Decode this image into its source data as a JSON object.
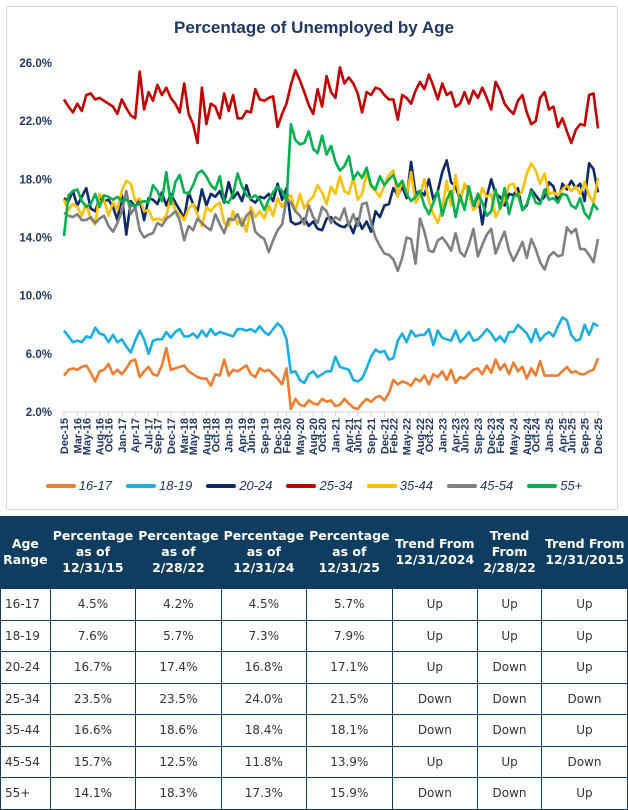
{
  "chart_data": {
    "type": "line",
    "title": "Percentage of Unemployed by Age",
    "xlabel": "",
    "ylabel": "",
    "ylim": [
      2,
      26
    ],
    "y_ticks": [
      "2.0%",
      "6.0%",
      "10.0%",
      "14.0%",
      "18.0%",
      "22.0%",
      "26.0%"
    ],
    "grid": false,
    "legend": "bottom",
    "x_start": "Dec-15",
    "x_end": "Dec-25",
    "x_frequency": "monthly",
    "x_tick_labels": [
      "Dec-15",
      "Mar-16",
      "May-16",
      "Aug-16",
      "Oct-16",
      "Jan-17",
      "Apr-17",
      "Jul-17",
      "Sep-17",
      "Dec-17",
      "Mar-18",
      "May-18",
      "Aug-18",
      "Oct-18",
      "Jan-19",
      "Apr-19",
      "Jun-19",
      "Sep-19",
      "Dec-19",
      "Feb-20",
      "May-20",
      "Aug-20",
      "Oct-20",
      "Jan-21",
      "Apr-21",
      "Jun-21",
      "Sep-21",
      "Dec-21",
      "Feb-22",
      "May-22",
      "Aug-22",
      "Oct-22",
      "Jan-23",
      "Apr-23",
      "Jun-23",
      "Sep-23",
      "Dec-23",
      "Feb-24",
      "May-24",
      "Aug-24",
      "Oct-24",
      "Jan-25",
      "Apr-25",
      "Jun-25",
      "Sep-25",
      "Dec-25"
    ],
    "series": [
      {
        "name": "16-17",
        "color": "#ed7d31",
        "values": [
          4.5,
          4.9,
          5.0,
          4.9,
          5.1,
          5.2,
          4.7,
          4.1,
          4.8,
          4.9,
          5.3,
          4.6,
          4.9,
          4.6,
          5.0,
          5.5,
          5.6,
          4.4,
          4.8,
          5.1,
          4.6,
          4.5,
          5.2,
          6.4,
          4.9,
          5.0,
          5.1,
          5.2,
          4.8,
          4.6,
          4.4,
          4.3,
          4.3,
          3.8,
          4.6,
          4.5,
          5.6,
          4.5,
          4.9,
          4.8,
          5.0,
          5.2,
          4.6,
          4.4,
          5.0,
          4.8,
          4.9,
          4.6,
          4.3,
          3.9,
          5.0,
          2.2,
          2.9,
          2.5,
          2.4,
          2.8,
          2.6,
          2.5,
          2.9,
          2.7,
          2.8,
          2.4,
          2.5,
          2.9,
          2.6,
          2.3,
          2.2,
          2.6,
          2.9,
          2.7,
          3.0,
          3.1,
          2.8,
          3.3,
          4.2,
          3.9,
          4.1,
          4.0,
          3.8,
          4.3,
          4.1,
          4.5,
          3.9,
          4.6,
          4.4,
          4.8,
          4.2,
          4.9,
          4.0,
          4.4,
          4.3,
          4.6,
          4.9,
          5.0,
          4.6,
          5.2,
          4.7,
          5.6,
          4.9,
          5.3,
          4.6,
          5.4,
          4.8,
          5.1,
          4.3,
          5.0,
          4.5,
          5.5,
          4.5,
          4.5,
          4.5,
          4.5,
          4.8,
          5.1,
          4.7,
          4.8,
          4.6,
          4.6,
          4.8,
          4.9,
          5.7
        ]
      },
      {
        "name": "18-19",
        "color": "#1cade4",
        "values": [
          7.6,
          7.2,
          6.8,
          6.9,
          6.8,
          7.2,
          7.1,
          7.8,
          7.4,
          7.3,
          6.8,
          7.3,
          6.8,
          7.0,
          6.5,
          6.1,
          6.9,
          7.6,
          7.0,
          6.0,
          6.9,
          7.0,
          7.0,
          7.5,
          7.1,
          7.5,
          7.7,
          7.2,
          7.2,
          7.4,
          7.1,
          7.6,
          7.2,
          7.7,
          7.3,
          7.5,
          7.4,
          7.3,
          7.2,
          7.7,
          7.7,
          7.6,
          7.7,
          7.5,
          7.9,
          7.5,
          7.3,
          7.7,
          8.1,
          7.8,
          7.0,
          4.7,
          4.8,
          4.2,
          4.0,
          4.6,
          4.8,
          4.4,
          4.6,
          4.8,
          4.8,
          5.8,
          5.1,
          5.0,
          4.9,
          4.2,
          4.1,
          4.3,
          5.0,
          5.8,
          6.3,
          6.1,
          6.2,
          5.6,
          5.7,
          6.9,
          7.4,
          6.8,
          7.6,
          7.2,
          7.3,
          7.3,
          7.7,
          6.6,
          7.6,
          7.1,
          7.0,
          6.9,
          7.6,
          6.8,
          7.1,
          7.5,
          6.9,
          7.0,
          7.3,
          7.7,
          7.4,
          6.9,
          7.2,
          6.8,
          7.5,
          7.5,
          8.0,
          7.7,
          7.4,
          6.8,
          7.7,
          6.9,
          7.3,
          7.5,
          7.2,
          7.9,
          8.5,
          8.3,
          7.3,
          6.9,
          7.0,
          8.0,
          7.3,
          8.1,
          7.9
        ]
      },
      {
        "name": "20-24",
        "color": "#0d2a66",
        "values": [
          16.7,
          16.5,
          17.2,
          16.2,
          16.8,
          17.4,
          16.0,
          15.8,
          16.7,
          16.5,
          16.6,
          16.1,
          15.2,
          16.9,
          14.2,
          16.5,
          16.1,
          16.6,
          15.2,
          16.7,
          16.6,
          16.3,
          17.1,
          16.2,
          17.0,
          16.4,
          15.9,
          15.3,
          17.1,
          16.3,
          15.8,
          17.3,
          16.2,
          17.0,
          16.8,
          17.2,
          16.4,
          17.8,
          16.7,
          17.1,
          16.5,
          17.6,
          16.6,
          16.4,
          16.8,
          16.7,
          17.0,
          16.5,
          17.7,
          16.6,
          17.4,
          15.1,
          14.9,
          15.0,
          15.3,
          14.8,
          15.1,
          14.6,
          14.5,
          15.3,
          15.4,
          15.0,
          14.8,
          14.7,
          15.0,
          14.3,
          15.3,
          14.6,
          15.1,
          14.4,
          15.8,
          15.4,
          16.2,
          16.3,
          17.4,
          16.9,
          17.5,
          16.7,
          19.2,
          17.0,
          17.2,
          16.9,
          18.0,
          16.6,
          17.2,
          18.5,
          19.3,
          17.8,
          17.5,
          16.6,
          17.6,
          17.4,
          16.0,
          17.0,
          14.9,
          16.8,
          18.0,
          17.0,
          16.8,
          16.2,
          17.0,
          16.9,
          17.4,
          15.9,
          16.2,
          17.3,
          16.9,
          16.5,
          16.8,
          17.8,
          17.5,
          16.4,
          17.7,
          17.3,
          17.9,
          17.4,
          17.7,
          16.5,
          19.1,
          18.7,
          17.1
        ]
      },
      {
        "name": "25-34",
        "color": "#c00000",
        "values": [
          23.5,
          23.0,
          22.6,
          23.2,
          22.7,
          23.8,
          23.9,
          23.5,
          23.6,
          23.4,
          23.2,
          23.0,
          22.5,
          23.5,
          22.9,
          22.4,
          22.2,
          25.4,
          22.8,
          24.0,
          23.4,
          24.5,
          23.8,
          24.3,
          23.6,
          23.2,
          22.6,
          24.6,
          22.5,
          21.8,
          20.5,
          24.3,
          21.8,
          23.2,
          23.0,
          22.2,
          23.9,
          22.7,
          23.8,
          22.2,
          22.2,
          22.7,
          22.6,
          24.2,
          23.5,
          23.4,
          23.6,
          23.7,
          21.6,
          22.5,
          23.2,
          24.5,
          25.5,
          24.8,
          24.0,
          23.1,
          22.5,
          24.2,
          23.0,
          25.1,
          24.0,
          23.6,
          25.7,
          24.6,
          25.0,
          24.6,
          23.9,
          22.6,
          24.0,
          23.8,
          24.3,
          24.2,
          23.8,
          23.5,
          23.5,
          22.1,
          23.8,
          23.6,
          23.2,
          24.1,
          24.7,
          24.2,
          25.2,
          24.4,
          23.5,
          24.6,
          23.8,
          24.0,
          23.0,
          23.2,
          24.0,
          23.2,
          24.1,
          23.6,
          24.3,
          23.6,
          22.8,
          24.7,
          24.1,
          23.2,
          22.8,
          22.5,
          23.4,
          23.8,
          22.6,
          21.8,
          22.0,
          23.6,
          24.0,
          22.8,
          23.0,
          21.6,
          22.2,
          21.3,
          20.5,
          21.4,
          21.8,
          21.7,
          23.8,
          23.9,
          21.5
        ]
      },
      {
        "name": "35-44",
        "color": "#ffc000",
        "values": [
          16.6,
          15.9,
          16.3,
          16.1,
          15.5,
          16.3,
          15.3,
          14.9,
          17.0,
          16.6,
          15.5,
          16.4,
          15.9,
          17.2,
          17.9,
          17.7,
          16.5,
          16.7,
          15.8,
          15.9,
          15.2,
          15.3,
          15.2,
          15.5,
          16.8,
          15.9,
          15.6,
          15.2,
          16.0,
          16.3,
          15.6,
          14.8,
          16.1,
          15.8,
          16.2,
          16.4,
          15.0,
          14.8,
          15.8,
          14.9,
          15.3,
          14.4,
          16.1,
          15.4,
          15.8,
          15.3,
          16.2,
          15.5,
          16.7,
          16.1,
          16.6,
          16.9,
          15.8,
          17.0,
          16.0,
          16.5,
          16.8,
          17.6,
          17.1,
          16.3,
          17.5,
          17.0,
          18.2,
          17.2,
          17.0,
          18.1,
          16.6,
          17.0,
          18.4,
          17.5,
          17.2,
          16.8,
          17.6,
          18.3,
          18.6,
          16.8,
          17.9,
          17.0,
          18.5,
          16.4,
          16.9,
          18.0,
          16.5,
          15.6,
          15.0,
          16.0,
          17.9,
          16.2,
          18.3,
          16.4,
          17.7,
          17.0,
          15.9,
          16.2,
          17.4,
          16.8,
          17.0,
          15.4,
          16.0,
          16.6,
          17.6,
          17.7,
          16.8,
          17.2,
          18.4,
          19.1,
          18.6,
          17.7,
          18.4,
          17.0,
          17.1,
          16.9,
          17.3,
          17.6,
          17.2,
          17.5,
          17.0,
          17.8,
          16.9,
          16.4,
          18.1
        ]
      },
      {
        "name": "45-54",
        "color": "#808080",
        "values": [
          15.7,
          15.5,
          15.4,
          15.6,
          15.2,
          15.2,
          15.4,
          15.0,
          15.3,
          15.5,
          14.8,
          14.4,
          15.0,
          15.8,
          17.2,
          15.6,
          16.1,
          14.5,
          14.0,
          14.2,
          14.3,
          15.0,
          14.8,
          15.3,
          15.5,
          15.8,
          15.2,
          13.8,
          14.8,
          14.5,
          15.3,
          15.0,
          14.7,
          14.5,
          15.6,
          14.9,
          14.3,
          15.3,
          15.2,
          15.6,
          14.8,
          15.5,
          15.8,
          14.4,
          14.1,
          13.9,
          13.0,
          13.8,
          14.5,
          14.9,
          16.6,
          16.4,
          15.8,
          15.5,
          14.9,
          16.2,
          15.4,
          15.0,
          16.1,
          15.8,
          15.0,
          15.4,
          15.2,
          16.0,
          14.8,
          15.6,
          14.8,
          16.3,
          16.4,
          15.0,
          14.0,
          13.4,
          12.9,
          12.8,
          12.5,
          11.7,
          12.6,
          14.0,
          13.9,
          12.2,
          15.3,
          14.4,
          13.1,
          13.0,
          13.8,
          14.0,
          13.6,
          13.1,
          14.3,
          13.0,
          12.7,
          13.5,
          14.6,
          12.7,
          13.5,
          14.2,
          14.6,
          12.9,
          13.7,
          14.4,
          13.1,
          12.4,
          13.0,
          13.7,
          12.6,
          13.9,
          13.2,
          12.3,
          11.8,
          12.7,
          13.0,
          12.7,
          12.8,
          14.7,
          14.3,
          14.6,
          13.2,
          13.2,
          12.8,
          12.3,
          13.9
        ]
      },
      {
        "name": "55+",
        "color": "#00b050",
        "values": [
          14.1,
          16.9,
          17.2,
          17.3,
          16.5,
          16.1,
          16.3,
          17.0,
          16.1,
          16.9,
          16.8,
          16.6,
          16.8,
          16.5,
          16.6,
          16.3,
          16.1,
          16.4,
          16.5,
          16.4,
          17.6,
          17.2,
          16.5,
          18.5,
          16.3,
          17.8,
          18.3,
          17.1,
          17.0,
          17.6,
          18.4,
          18.6,
          18.2,
          17.6,
          17.3,
          18.2,
          16.5,
          16.4,
          17.0,
          18.4,
          17.5,
          16.9,
          16.7,
          16.9,
          16.6,
          15.9,
          16.6,
          17.1,
          17.5,
          17.2,
          16.5,
          21.8,
          20.7,
          20.4,
          20.5,
          21.3,
          20.1,
          19.8,
          21.0,
          19.7,
          20.3,
          19.2,
          18.6,
          18.9,
          19.6,
          18.0,
          18.5,
          18.1,
          18.8,
          17.6,
          17.3,
          18.2,
          17.6,
          18.0,
          18.3,
          17.5,
          17.9,
          17.0,
          16.5,
          16.8,
          17.2,
          16.2,
          15.6,
          16.4,
          17.2,
          15.5,
          16.6,
          17.2,
          15.4,
          16.9,
          15.9,
          17.5,
          16.2,
          17.0,
          16.4,
          15.5,
          15.8,
          17.3,
          16.0,
          17.4,
          15.6,
          16.8,
          17.0,
          15.9,
          16.3,
          17.2,
          16.4,
          16.3,
          17.3,
          16.6,
          16.7,
          16.4,
          17.0,
          16.9,
          16.2,
          16.0,
          16.7,
          15.7,
          15.3,
          16.3,
          15.9
        ]
      }
    ]
  },
  "table": {
    "headers": [
      "Age Range",
      "Percentage as of 12/31/15",
      "Percentage as of 2/28/22",
      "Percentage as of 12/31/24",
      "Percentage as of 12/31/25",
      "Trend From 12/31/2024",
      "Trend From 2/28/22",
      "Trend From 12/31/2015"
    ],
    "header_color": "#0e3d5f",
    "rows": [
      [
        "16-17",
        "4.5%",
        "4.2%",
        "4.5%",
        "5.7%",
        "Up",
        "Up",
        "Up"
      ],
      [
        "18-19",
        "7.6%",
        "5.7%",
        "7.3%",
        "7.9%",
        "Up",
        "Up",
        "Up"
      ],
      [
        "20-24",
        "16.7%",
        "17.4%",
        "16.8%",
        "17.1%",
        "Up",
        "Down",
        "Up"
      ],
      [
        "25-34",
        "23.5%",
        "23.5%",
        "24.0%",
        "21.5%",
        "Down",
        "Down",
        "Down"
      ],
      [
        "35-44",
        "16.6%",
        "18.6%",
        "18.4%",
        "18.1%",
        "Down",
        "Down",
        "Up"
      ],
      [
        "45-54",
        "15.7%",
        "12.5%",
        "11.8%",
        "13.9%",
        "Up",
        "Up",
        "Down"
      ],
      [
        "55+",
        "14.1%",
        "18.3%",
        "17.3%",
        "15.9%",
        "Down",
        "Down",
        "Up"
      ]
    ]
  }
}
